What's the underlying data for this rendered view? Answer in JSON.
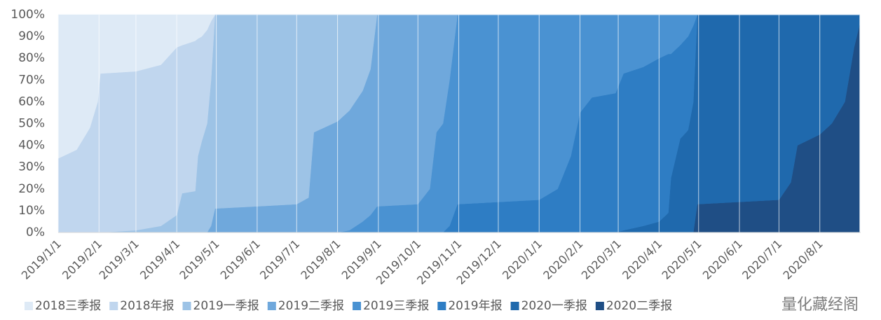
{
  "chart_data": {
    "type": "stacked-area-100",
    "x": [
      "2019/1/1",
      "2019/1/15",
      "2019/1/25",
      "2019/1/31",
      "2019/2/2",
      "2019/3/1",
      "2019/3/20",
      "2019/4/1",
      "2019/4/5",
      "2019/4/15",
      "2019/4/17",
      "2019/4/20",
      "2019/4/24",
      "2019/4/27",
      "2019/4/30",
      "2019/6/1",
      "2019/7/1",
      "2019/7/10",
      "2019/7/14",
      "2019/8/1",
      "2019/8/10",
      "2019/8/20",
      "2019/8/26",
      "2019/8/31",
      "2019/10/1",
      "2019/10/10",
      "2019/10/15",
      "2019/10/20",
      "2019/10/25",
      "2019/10/31",
      "2019/12/1",
      "2020/1/1",
      "2020/1/15",
      "2020/1/25",
      "2020/2/1",
      "2020/2/10",
      "2020/2/28",
      "2020/3/5",
      "2020/3/20",
      "2020/4/1",
      "2020/4/8",
      "2020/4/10",
      "2020/4/17",
      "2020/4/23",
      "2020/4/27",
      "2020/4/30",
      "2020/7/1",
      "2020/7/10",
      "2020/7/15",
      "2020/8/1",
      "2020/8/10",
      "2020/8/20",
      "2020/8/27",
      "2020/8/31"
    ],
    "xlim": [
      "2019/1/1",
      "2020/9/1"
    ],
    "xticks": [
      "2019/1/1",
      "2019/2/1",
      "2019/3/1",
      "2019/4/1",
      "2019/5/1",
      "2019/6/1",
      "2019/7/1",
      "2019/8/1",
      "2019/9/1",
      "2019/10/1",
      "2019/11/1",
      "2019/12/1",
      "2020/1/1",
      "2020/2/1",
      "2020/3/1",
      "2020/4/1",
      "2020/5/1",
      "2020/6/1",
      "2020/7/1",
      "2020/8/1"
    ],
    "ylim": [
      0,
      100
    ],
    "yticks": [
      {
        "value": 0,
        "label": "0%"
      },
      {
        "value": 10,
        "label": "10%"
      },
      {
        "value": 20,
        "label": "20%"
      },
      {
        "value": 30,
        "label": "30%"
      },
      {
        "value": 40,
        "label": "40%"
      },
      {
        "value": 50,
        "label": "50%"
      },
      {
        "value": 60,
        "label": "60%"
      },
      {
        "value": 70,
        "label": "70%"
      },
      {
        "value": 80,
        "label": "80%"
      },
      {
        "value": 90,
        "label": "90%"
      },
      {
        "value": 100,
        "label": "100%"
      }
    ],
    "grid": true,
    "legend": "bottom",
    "series": [
      {
        "name": "2018三季报",
        "color": "#deeaf6",
        "values": [
          66,
          62,
          52,
          40,
          27,
          26,
          23,
          15,
          14,
          12,
          11,
          10,
          7,
          3,
          0,
          0,
          0,
          0,
          0,
          0,
          0,
          0,
          0,
          0,
          0,
          0,
          0,
          0,
          0,
          0,
          0,
          0,
          0,
          0,
          0,
          0,
          0,
          0,
          0,
          0,
          0,
          0,
          0,
          0,
          0,
          0,
          0,
          0,
          0,
          0,
          0,
          0,
          0,
          0
        ]
      },
      {
        "name": "2018年报",
        "color": "#c0d6ee",
        "values": [
          34,
          38,
          48,
          60,
          73,
          73,
          74,
          77,
          68,
          69,
          54,
          48,
          43,
          27,
          0,
          0,
          0,
          0,
          0,
          0,
          0,
          0,
          0,
          0,
          0,
          0,
          0,
          0,
          0,
          0,
          0,
          0,
          0,
          0,
          0,
          0,
          0,
          0,
          0,
          0,
          0,
          0,
          0,
          0,
          0,
          0,
          0,
          0,
          0,
          0,
          0,
          0,
          0,
          0
        ]
      },
      {
        "name": "2019一季报",
        "color": "#9dc3e6",
        "values": [
          0,
          0,
          0,
          0,
          0,
          1,
          3,
          8,
          18,
          19,
          35,
          42,
          50,
          67,
          89,
          88,
          87,
          84,
          54,
          49,
          44,
          35,
          25,
          0,
          0,
          0,
          0,
          0,
          0,
          0,
          0,
          0,
          0,
          0,
          0,
          0,
          0,
          0,
          0,
          0,
          0,
          0,
          0,
          0,
          0,
          0,
          0,
          0,
          0,
          0,
          0,
          0,
          0,
          0
        ]
      },
      {
        "name": "2019二季报",
        "color": "#6fa8dc",
        "values": [
          0,
          0,
          0,
          0,
          0,
          0,
          0,
          0,
          0,
          0,
          0,
          0,
          0,
          3,
          11,
          12,
          13,
          16,
          46,
          51,
          55,
          60,
          67,
          88,
          87,
          80,
          54,
          50,
          30,
          0,
          0,
          0,
          0,
          0,
          0,
          0,
          0,
          0,
          0,
          0,
          0,
          0,
          0,
          0,
          0,
          0,
          0,
          0,
          0,
          0,
          0,
          0,
          0,
          0
        ]
      },
      {
        "name": "2019三季报",
        "color": "#4a92d2",
        "values": [
          0,
          0,
          0,
          0,
          0,
          0,
          0,
          0,
          0,
          0,
          0,
          0,
          0,
          0,
          0,
          0,
          0,
          0,
          0,
          0,
          1,
          5,
          8,
          12,
          13,
          20,
          46,
          50,
          67,
          87,
          86,
          85,
          80,
          65,
          45,
          38,
          36,
          27,
          24,
          20,
          18,
          18,
          14,
          10,
          5,
          0,
          0,
          0,
          0,
          0,
          0,
          0,
          0,
          0
        ]
      },
      {
        "name": "2019年报",
        "color": "#2e7dc4",
        "values": [
          0,
          0,
          0,
          0,
          0,
          0,
          0,
          0,
          0,
          0,
          0,
          0,
          0,
          0,
          0,
          0,
          0,
          0,
          0,
          0,
          0,
          0,
          0,
          0,
          0,
          0,
          0,
          0,
          3,
          13,
          14,
          15,
          20,
          35,
          55,
          62,
          64,
          72,
          73,
          75,
          73,
          57,
          43,
          43,
          35,
          0,
          0,
          0,
          0,
          0,
          0,
          0,
          0,
          0
        ]
      },
      {
        "name": "2020一季报",
        "color": "#1f69ad",
        "values": [
          0,
          0,
          0,
          0,
          0,
          0,
          0,
          0,
          0,
          0,
          0,
          0,
          0,
          0,
          0,
          0,
          0,
          0,
          0,
          0,
          0,
          0,
          0,
          0,
          0,
          0,
          0,
          0,
          0,
          0,
          0,
          0,
          0,
          0,
          0,
          0,
          0,
          1,
          3,
          5,
          9,
          25,
          43,
          47,
          60,
          87,
          85,
          77,
          60,
          55,
          50,
          40,
          15,
          5
        ]
      },
      {
        "name": "2020二季报",
        "color": "#1f4e85",
        "values": [
          0,
          0,
          0,
          0,
          0,
          0,
          0,
          0,
          0,
          0,
          0,
          0,
          0,
          0,
          0,
          0,
          0,
          0,
          0,
          0,
          0,
          0,
          0,
          0,
          0,
          0,
          0,
          0,
          0,
          0,
          0,
          0,
          0,
          0,
          0,
          0,
          0,
          0,
          0,
          0,
          0,
          0,
          0,
          0,
          0,
          13,
          15,
          23,
          40,
          45,
          50,
          60,
          85,
          95
        ]
      }
    ],
    "watermark": "量化藏经阁"
  }
}
